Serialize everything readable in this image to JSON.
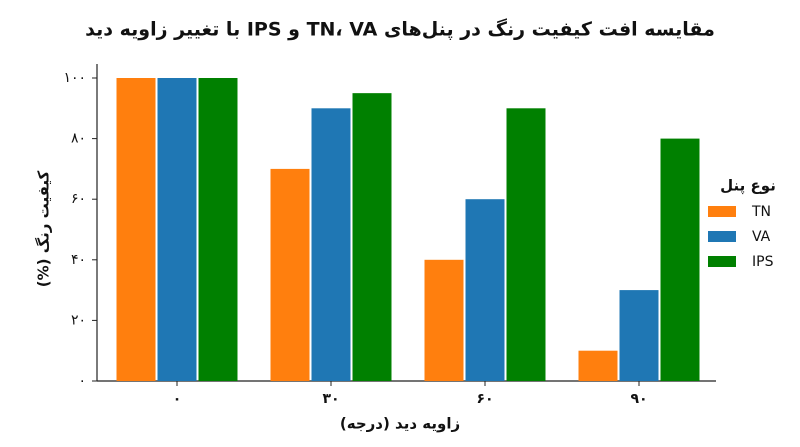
{
  "chart_data": {
    "type": "bar",
    "title": "مقایسه افت کیفیت رنگ در پنل‌های TN، VA و IPS با تغییر زاویه دید",
    "x_label": "زاویه دید (درجه)",
    "y_label": "کیفیت رنگ (%)",
    "legend_title": "نوع پنل",
    "legend_position": "right",
    "categories": [
      "۰",
      "۳۰",
      "۶۰",
      "۹۰"
    ],
    "series": [
      {
        "name": "TN",
        "color": "#ff7f0e",
        "values": [
          100,
          70,
          40,
          10
        ]
      },
      {
        "name": "VA",
        "color": "#1f77b4",
        "values": [
          100,
          90,
          60,
          30
        ]
      },
      {
        "name": "IPS",
        "color": "#008000",
        "values": [
          100,
          95,
          90,
          80
        ]
      }
    ],
    "ylim": [
      0,
      100
    ],
    "yticks": [
      {
        "value": 0,
        "label": "۰"
      },
      {
        "value": 20,
        "label": "۲۰"
      },
      {
        "value": 40,
        "label": "۴۰"
      },
      {
        "value": 60,
        "label": "۶۰"
      },
      {
        "value": 80,
        "label": "۸۰"
      },
      {
        "value": 100,
        "label": "۱۰۰"
      }
    ]
  }
}
